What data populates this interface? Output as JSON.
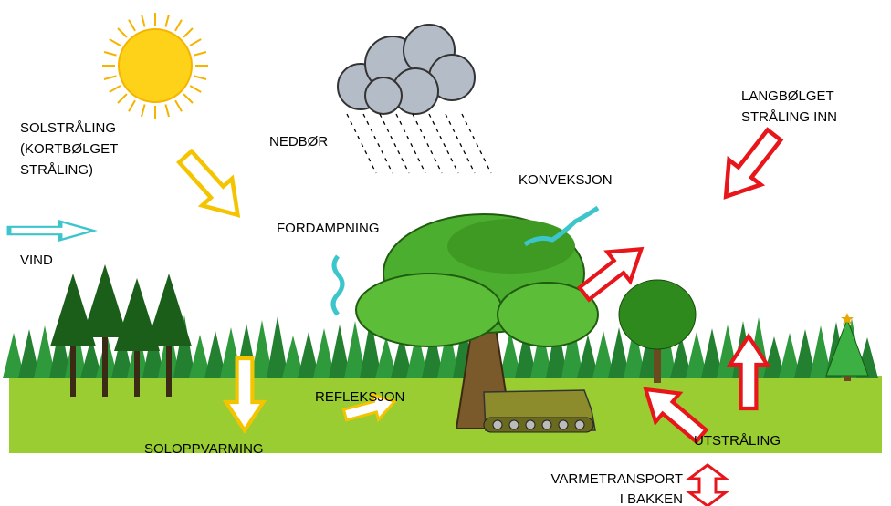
{
  "labels": {
    "solstraling": [
      "SOLSTRÅLING",
      "(KORTBØLGET",
      "STRÅLING)"
    ],
    "nedbor": "NEDBØR",
    "langbolget": [
      "LANGBØLGET",
      "STRÅLING INN"
    ],
    "konveksjon": "KONVEKSJON",
    "fordampning": "FORDAMPNING",
    "vind": "VIND",
    "refleksjon": "REFLEKSJON",
    "soloppvarming": "SOLOPPVARMING",
    "utstraling": "UTSTRÅLING",
    "varmetransport": [
      "VARMETRANSPORT",
      "I BAKKEN"
    ]
  }
}
